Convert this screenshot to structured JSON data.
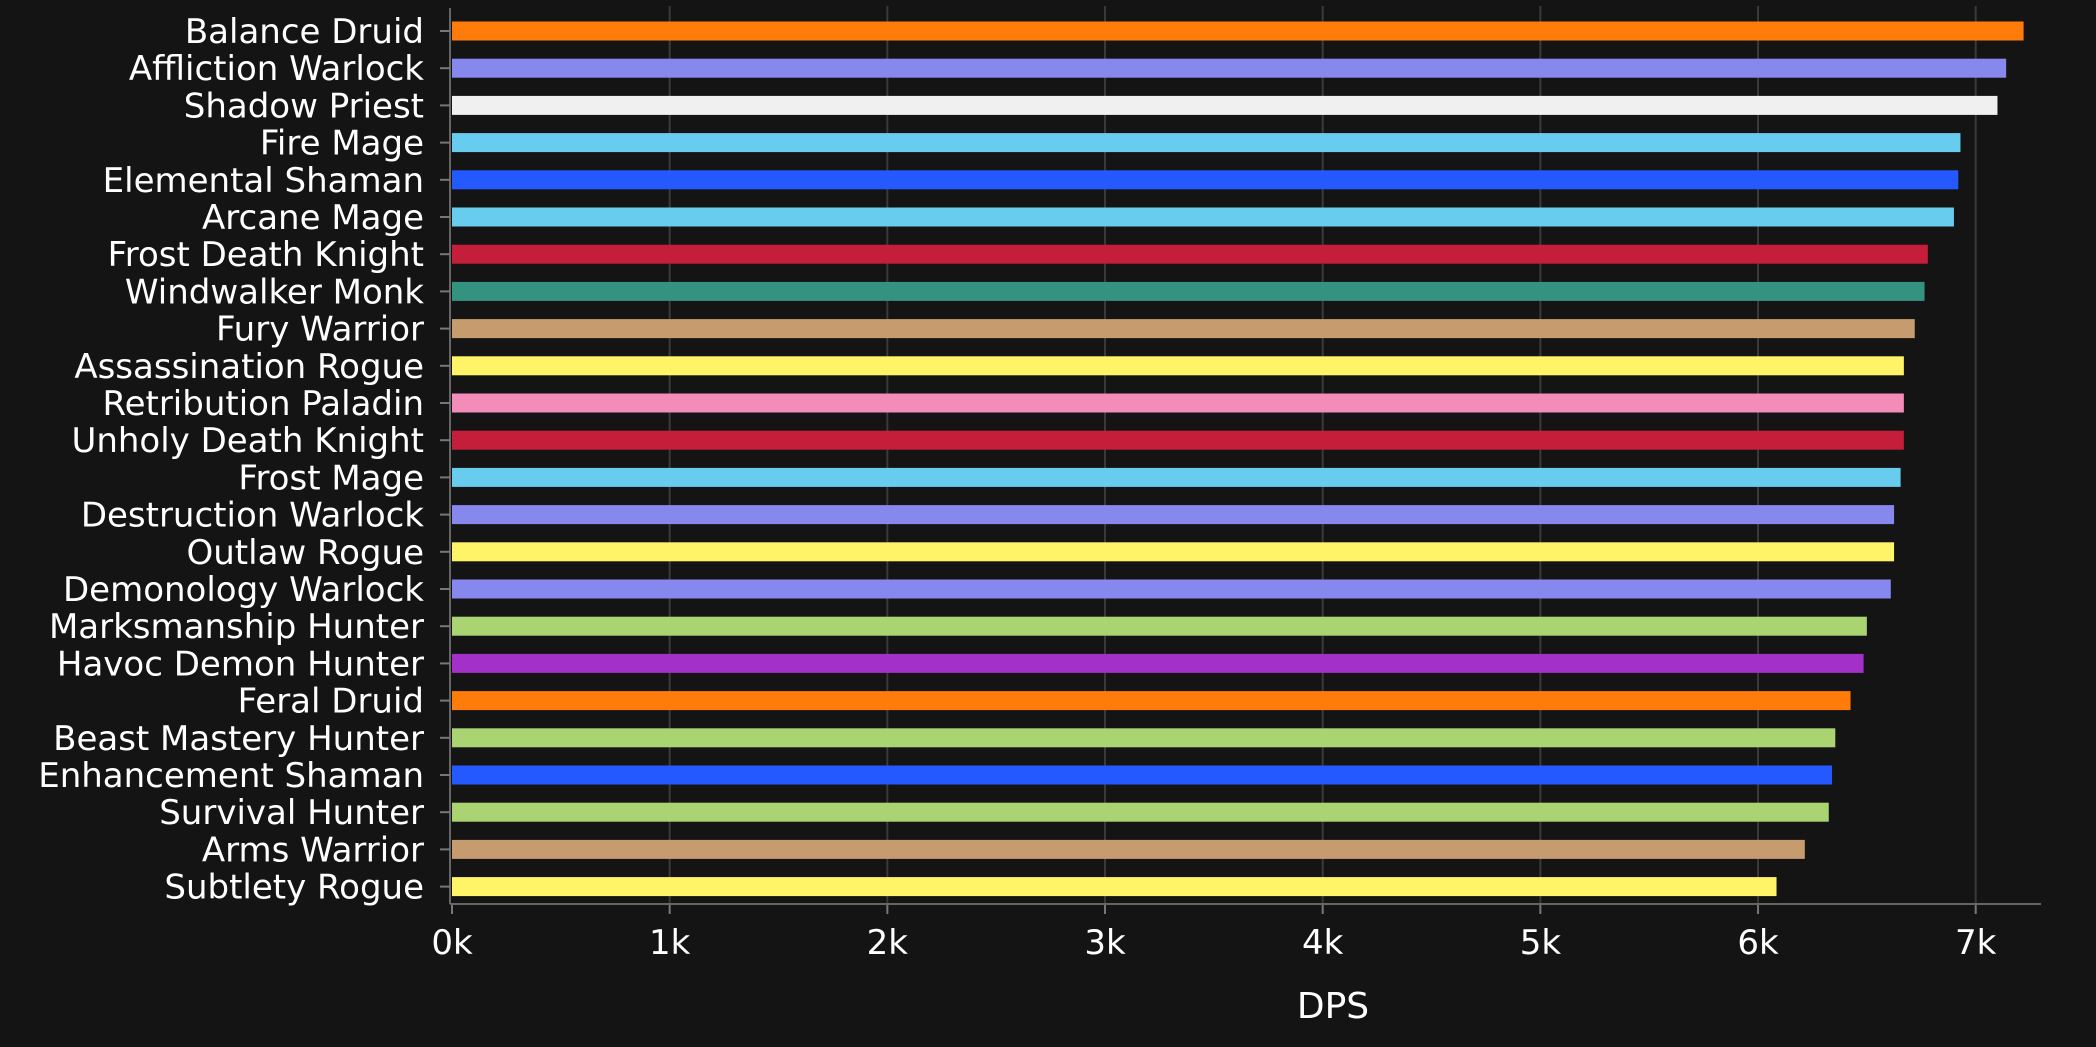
{
  "chart_data": {
    "type": "bar",
    "orientation": "horizontal",
    "categories": [
      "Balance Druid",
      "Affliction Warlock",
      "Shadow Priest",
      "Fire Mage",
      "Elemental Shaman",
      "Arcane Mage",
      "Frost Death Knight",
      "Windwalker Monk",
      "Fury Warrior",
      "Assassination Rogue",
      "Retribution Paladin",
      "Unholy Death Knight",
      "Frost Mage",
      "Destruction Warlock",
      "Outlaw Rogue",
      "Demonology Warlock",
      "Marksmanship Hunter",
      "Havoc Demon Hunter",
      "Feral Druid",
      "Beast Mastery Hunter",
      "Enhancement Shaman",
      "Survival Hunter",
      "Arms Warrior",
      "Subtlety Rogue"
    ],
    "values": [
      7220,
      7140,
      7100,
      6930,
      6920,
      6900,
      6780,
      6765,
      6720,
      6670,
      6670,
      6670,
      6655,
      6625,
      6625,
      6610,
      6500,
      6485,
      6425,
      6355,
      6340,
      6325,
      6215,
      6085
    ],
    "colors": [
      "#FF7C0A",
      "#8788EE",
      "#F0F0F0",
      "#68CCEF",
      "#2359FF",
      "#68CCEF",
      "#C41E3A",
      "#33937F",
      "#C69B6D",
      "#FFF468",
      "#F48CBA",
      "#C41E3A",
      "#68CCEF",
      "#8788EE",
      "#FFF468",
      "#8788EE",
      "#AAD372",
      "#A330C9",
      "#FF7C0A",
      "#AAD372",
      "#2359FF",
      "#AAD372",
      "#C69B6D",
      "#FFF468"
    ],
    "xlabel": "DPS",
    "ylabel": "",
    "title": "",
    "xlim": [
      0,
      7300
    ],
    "xticks": [
      0,
      1000,
      2000,
      3000,
      4000,
      5000,
      6000,
      7000
    ],
    "xtick_labels": [
      "0k",
      "1k",
      "2k",
      "3k",
      "4k",
      "5k",
      "6k",
      "7k"
    ],
    "grid": true,
    "background": "#141414",
    "grid_color": "#3a3a3a"
  }
}
